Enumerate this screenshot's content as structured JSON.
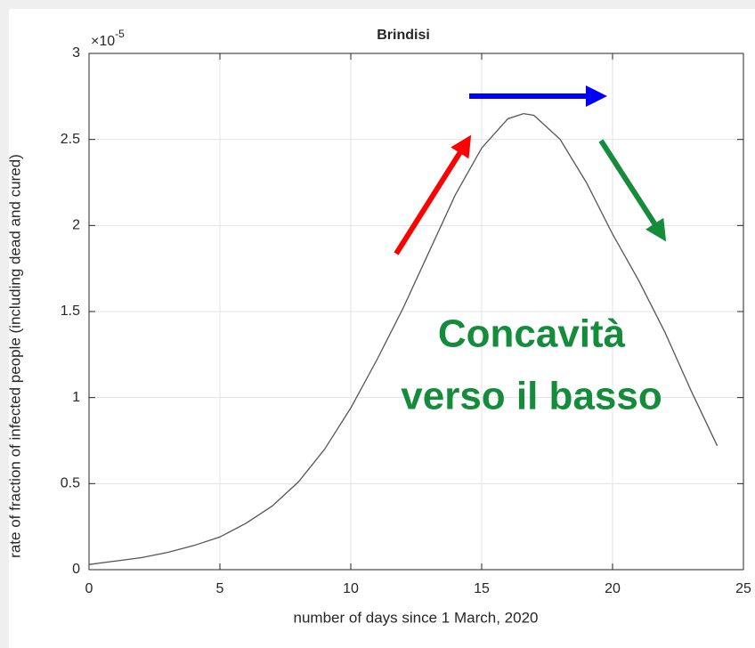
{
  "chart_data": {
    "type": "line",
    "title": "Brindisi",
    "xlabel": "number of days since 1 March, 2020",
    "ylabel": "rate of fraction of infected people (including dead and cured)",
    "y_multiplier": "×10",
    "y_exponent": "-5",
    "annotations": [
      "Concavità",
      "verso il basso"
    ],
    "annotation_color": "#148c3c",
    "arrow_colors": [
      "#ff0000",
      "#0000ff",
      "#148c3c"
    ],
    "x": [
      0,
      1,
      2,
      3,
      4,
      5,
      6,
      7,
      8,
      9,
      10,
      11,
      12,
      13,
      14,
      15,
      16,
      16.6,
      17,
      18,
      19,
      20,
      21,
      22,
      23,
      24
    ],
    "series": [
      {
        "name": "Brindisi",
        "color": "#555555",
        "values": [
          0.03,
          0.05,
          0.07,
          0.1,
          0.14,
          0.19,
          0.27,
          0.37,
          0.51,
          0.7,
          0.94,
          1.22,
          1.52,
          1.85,
          2.18,
          2.45,
          2.62,
          2.65,
          2.64,
          2.5,
          2.25,
          1.95,
          1.68,
          1.38,
          1.04,
          0.72
        ]
      }
    ],
    "xlim": [
      0,
      25
    ],
    "xticks": [
      0,
      5,
      10,
      15,
      20,
      25
    ],
    "ylim": [
      0,
      3
    ],
    "yticks": [
      0,
      0.5,
      1,
      1.5,
      2,
      2.5,
      3
    ],
    "grid": true
  }
}
